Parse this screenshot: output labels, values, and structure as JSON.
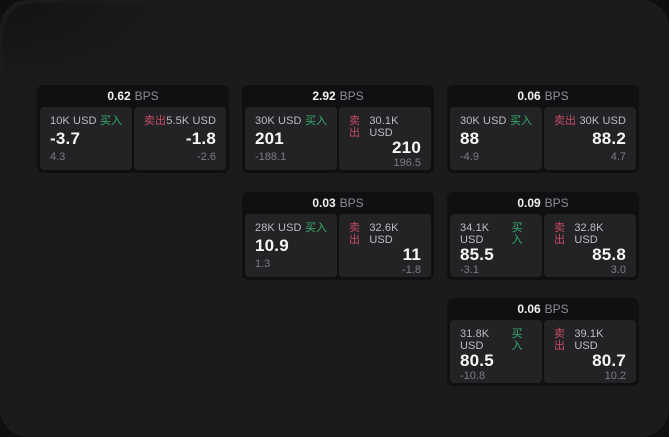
{
  "labels": {
    "bps_unit": "BPS",
    "buy": "买入",
    "sell": "卖出"
  },
  "colors": {
    "backdrop": "#0f0f11",
    "surface": "#1b1b1d",
    "card_background": "#101012",
    "panel_background": "#232326",
    "buy_green": "#35b06d",
    "sell_red": "#c44a63"
  },
  "cards": [
    {
      "bps": "0.62",
      "buy": {
        "amount": "10K USD",
        "value": "-3.7",
        "sub": "4.3"
      },
      "sell": {
        "amount": "5.5K USD",
        "value": "-1.8",
        "sub": "-2.6"
      }
    },
    {
      "bps": "2.92",
      "buy": {
        "amount": "30K USD",
        "value": "201",
        "sub": "-188.1"
      },
      "sell": {
        "amount": "30.1K USD",
        "value": "210",
        "sub": "196.5"
      }
    },
    {
      "bps": "0.06",
      "buy": {
        "amount": "30K USD",
        "value": "88",
        "sub": "-4.9"
      },
      "sell": {
        "amount": "30K USD",
        "value": "88.2",
        "sub": "4.7"
      }
    },
    {
      "bps": "0.03",
      "buy": {
        "amount": "28K USD",
        "value": "10.9",
        "sub": "1.3"
      },
      "sell": {
        "amount": "32.6K USD",
        "value": "11",
        "sub": "-1.8"
      }
    },
    {
      "bps": "0.09",
      "buy": {
        "amount": "34.1K USD",
        "value": "85.5",
        "sub": "-3.1"
      },
      "sell": {
        "amount": "32.8K USD",
        "value": "85.8",
        "sub": "3.0"
      }
    },
    {
      "bps": "0.06",
      "buy": {
        "amount": "31.8K USD",
        "value": "80.5",
        "sub": "-10.8"
      },
      "sell": {
        "amount": "39.1K USD",
        "value": "80.7",
        "sub": "10.2"
      }
    }
  ]
}
